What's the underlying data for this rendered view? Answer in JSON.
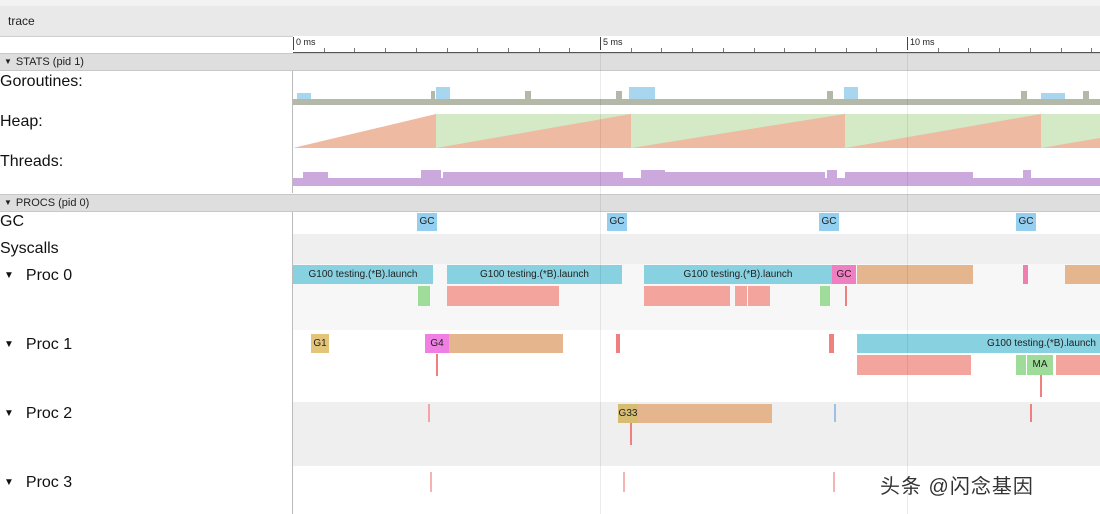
{
  "app": {
    "title": "trace"
  },
  "ruler": {
    "ticks": [
      "0 ms",
      "5 ms",
      "10 ms"
    ]
  },
  "sections": {
    "stats": "STATS (pid 1)",
    "procs": "PROCS (pid 0)"
  },
  "stats_rows": {
    "goroutines": "Goroutines:",
    "heap": "Heap:",
    "threads": "Threads:"
  },
  "procs_rows": {
    "gc": "GC",
    "syscalls": "Syscalls",
    "proc0": "Proc 0",
    "proc1": "Proc 1",
    "proc2": "Proc 2",
    "proc3": "Proc 3"
  },
  "gc_events": [
    "GC",
    "GC",
    "GC",
    "GC"
  ],
  "slices": {
    "p0_a": "G100 testing.(*B).launch",
    "p0_b": "G100 testing.(*B).launch",
    "p0_c": "G100 testing.(*B).launch",
    "p0_gc": "GC",
    "p1_g1": "G1",
    "p1_g4": "G4",
    "p1_a": "G100 testing.(*B).launch",
    "p1_ma": "MA",
    "p2_g": "G33"
  },
  "colors": {
    "running": "#88d1e0",
    "syscall": "#f3a49d",
    "gc": "#94cff0",
    "gc_pink": "#f07fc2",
    "heap_alloc": "#eebaa2",
    "heap_next": "#d4e9c5",
    "goroutines": "#b3b8a8",
    "threads": "#cca9dc",
    "orange": "#e5b58e",
    "g1": "#e3c57a"
  },
  "watermark": "头条 @闪念基因"
}
